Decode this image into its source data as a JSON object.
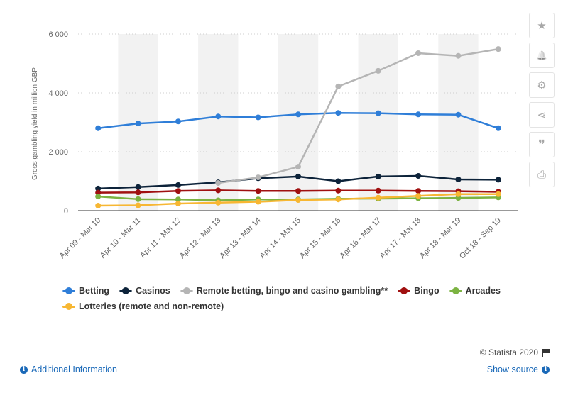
{
  "chart_data": {
    "type": "line",
    "title": "",
    "xlabel": "",
    "ylabel": "Gross gambling yield in million GBP",
    "ylim": [
      0,
      6000
    ],
    "yticks": [
      0,
      2000,
      4000,
      6000
    ],
    "ytick_labels": [
      "0",
      "2 000",
      "4 000",
      "6 000"
    ],
    "grid": true,
    "legend_position": "bottom",
    "categories": [
      "Apr 09 - Mar 10",
      "Apr 10 - Mar 11",
      "Apr 11 - Mar 12",
      "Apr 12 - Mar 13",
      "Apr 13 - Mar 14",
      "Apr 14 - Mar 15",
      "Apr 15 - Mar 16",
      "Apr 16 - Mar 17",
      "Apr 17 - Mar 18",
      "Apr 18 - Mar 19",
      "Oct 18 - Sep 19"
    ],
    "series": [
      {
        "name": "Betting",
        "color": "#2f7ed8",
        "values": [
          2800,
          2960,
          3030,
          3200,
          3170,
          3270,
          3320,
          3310,
          3270,
          3260,
          2800
        ]
      },
      {
        "name": "Casinos",
        "color": "#0d233a",
        "values": [
          750,
          800,
          870,
          960,
          1100,
          1160,
          1000,
          1160,
          1180,
          1060,
          1050
        ]
      },
      {
        "name": "Remote betting, bingo and casino gambling**",
        "color": "#b5b5b5",
        "values": [
          null,
          null,
          null,
          940,
          1130,
          1490,
          4220,
          4750,
          5350,
          5260,
          5490
        ]
      },
      {
        "name": "Bingo",
        "color": "#a01010",
        "values": [
          610,
          620,
          670,
          690,
          670,
          670,
          680,
          680,
          670,
          660,
          640
        ]
      },
      {
        "name": "Arcades",
        "color": "#7cb342",
        "values": [
          480,
          390,
          380,
          350,
          380,
          380,
          400,
          410,
          420,
          430,
          450
        ]
      },
      {
        "name": "Lotteries (remote and non-remote)",
        "color": "#f7b733",
        "values": [
          170,
          180,
          240,
          270,
          300,
          360,
          380,
          440,
          500,
          560,
          560
        ]
      }
    ]
  },
  "sidebar": {
    "buttons": [
      {
        "name": "star-icon",
        "glyph": "★"
      },
      {
        "name": "bell-icon",
        "glyph": "🔔"
      },
      {
        "name": "gear-icon",
        "glyph": "⚙"
      },
      {
        "name": "share-icon",
        "glyph": "⋖"
      },
      {
        "name": "quote-icon",
        "glyph": "❞"
      },
      {
        "name": "print-icon",
        "glyph": "⎙"
      }
    ]
  },
  "footer": {
    "credit": "© Statista 2020",
    "additional_info": "Additional Information",
    "show_source": "Show source"
  }
}
